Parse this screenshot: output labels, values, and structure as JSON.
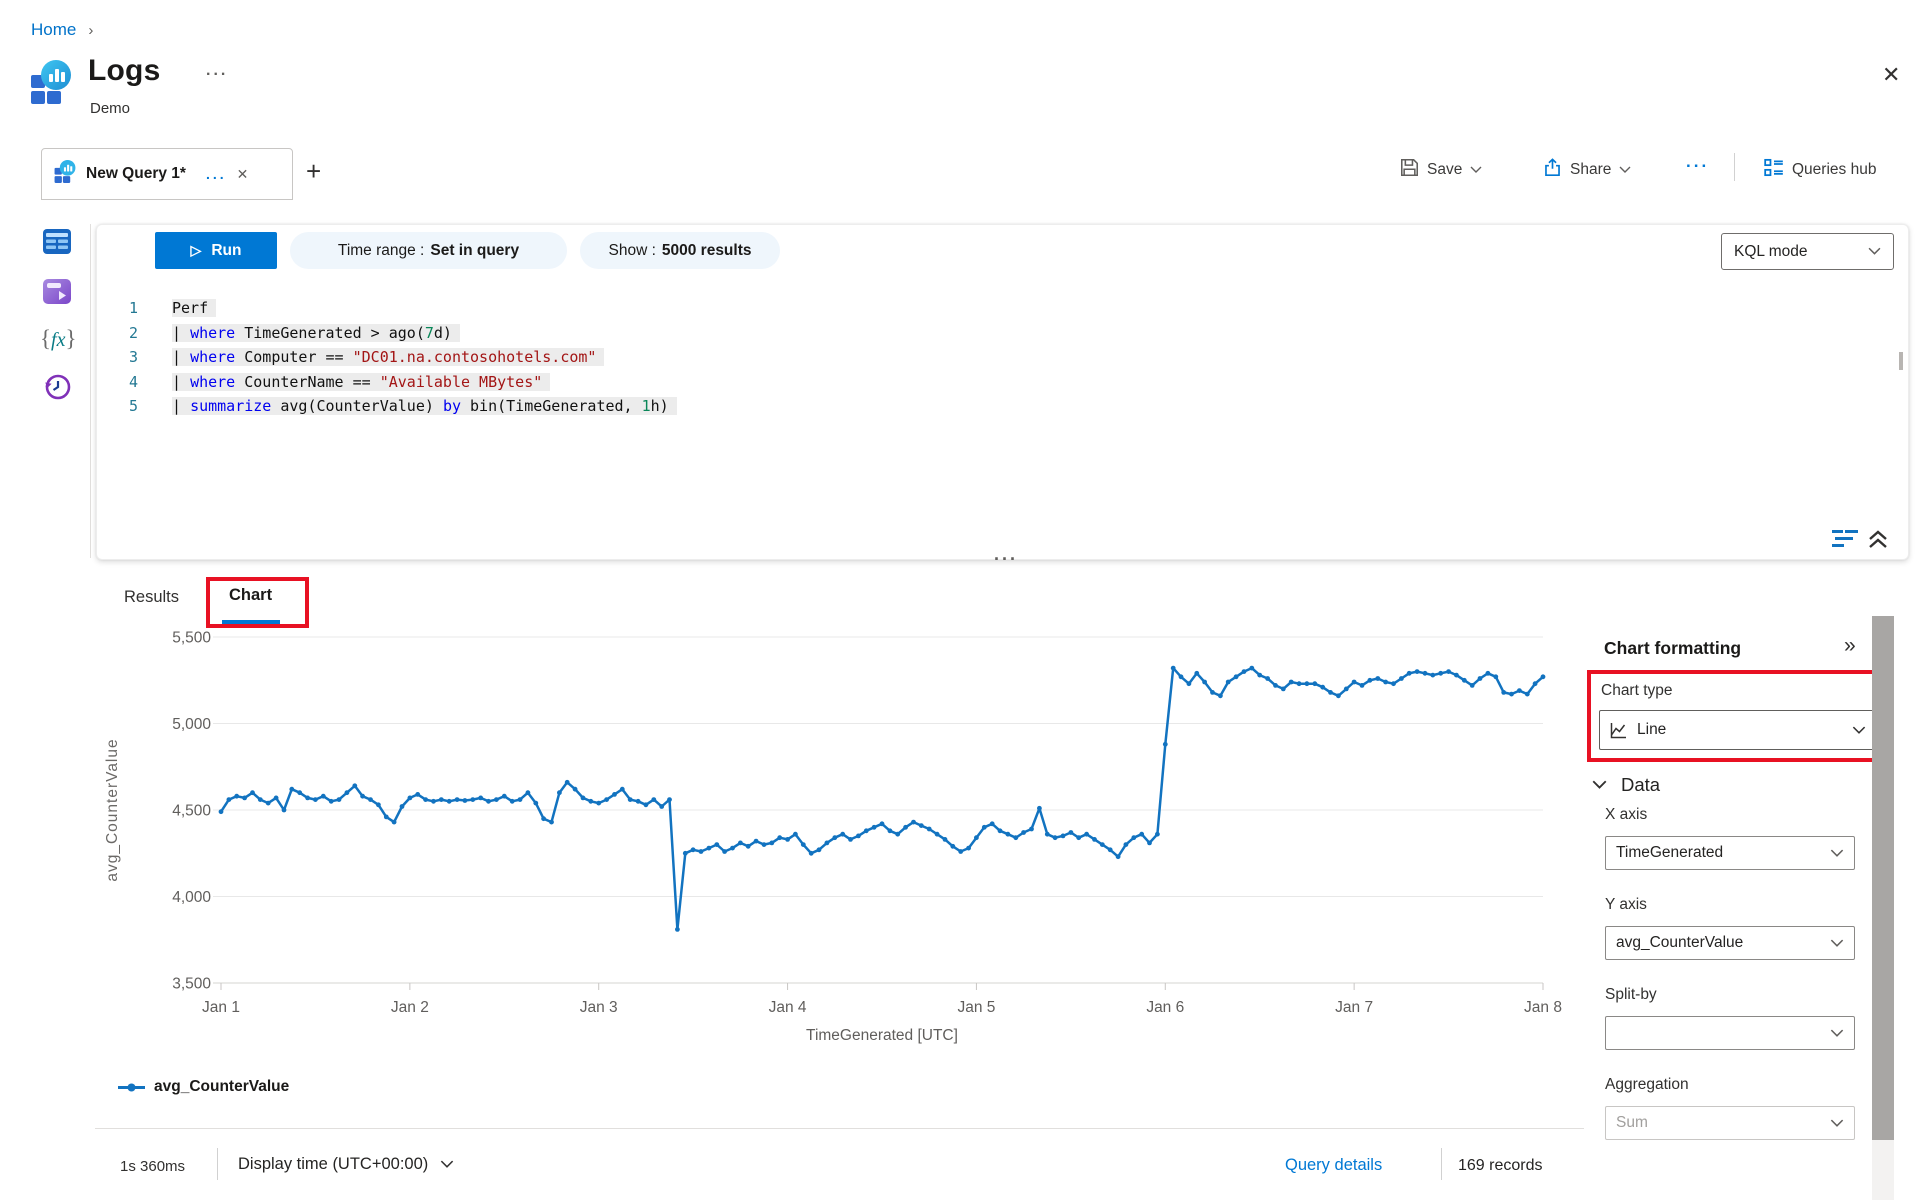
{
  "breadcrumb": {
    "home": "Home",
    "chevron": "›"
  },
  "header": {
    "title": "Logs",
    "subtitle": "Demo",
    "more": "...",
    "close": "✕"
  },
  "tabbar": {
    "tab_title": "New Query 1*",
    "more": "...",
    "close": "✕",
    "new_tab": "+"
  },
  "actions": {
    "save": "Save",
    "share": "Share",
    "more": "...",
    "queries_hub": "Queries hub"
  },
  "toolbar": {
    "run": "Run",
    "run_icon": "▷",
    "time_range_label": "Time range :",
    "time_range_value": "Set in query",
    "show_label": "Show :",
    "show_value": "5000 results",
    "kql_mode": "KQL mode"
  },
  "editor": {
    "lines": [
      {
        "num": "1",
        "tokens": [
          [
            "pl",
            "Perf"
          ]
        ]
      },
      {
        "num": "2",
        "tokens": [
          [
            "pl",
            "| "
          ],
          [
            "kw",
            "where"
          ],
          [
            "pl",
            " TimeGenerated > ago("
          ],
          [
            "num",
            "7"
          ],
          [
            "pl",
            "d)"
          ]
        ]
      },
      {
        "num": "3",
        "tokens": [
          [
            "pl",
            "| "
          ],
          [
            "kw",
            "where"
          ],
          [
            "pl",
            " Computer == "
          ],
          [
            "str",
            "\"DC01.na.contosohotels.com\""
          ]
        ]
      },
      {
        "num": "4",
        "tokens": [
          [
            "pl",
            "| "
          ],
          [
            "kw",
            "where"
          ],
          [
            "pl",
            " CounterName == "
          ],
          [
            "str",
            "\"Available MBytes\""
          ]
        ]
      },
      {
        "num": "5",
        "tokens": [
          [
            "pl",
            "| "
          ],
          [
            "kw",
            "summarize"
          ],
          [
            "pl",
            " avg(CounterValue) "
          ],
          [
            "kw",
            "by"
          ],
          [
            "pl",
            " bin(TimeGenerated, "
          ],
          [
            "num",
            "1"
          ],
          [
            "pl",
            "h)"
          ]
        ]
      }
    ],
    "drag_handle": "..."
  },
  "results": {
    "tabs": [
      {
        "label": "Results",
        "active": false
      },
      {
        "label": "Chart",
        "active": true
      }
    ]
  },
  "chart_data": {
    "type": "line",
    "xlabel": "TimeGenerated [UTC]",
    "ylabel": "avg_CounterValue",
    "x_tick_labels": [
      "Jan 1",
      "Jan 2",
      "Jan 3",
      "Jan 4",
      "Jan 5",
      "Jan 6",
      "Jan 7",
      "Jan 8"
    ],
    "y_ticks": [
      3500,
      4000,
      4500,
      5000,
      5500
    ],
    "y_tick_labels": [
      "3,500",
      "4,000",
      "4,500",
      "5,000",
      "5,500"
    ],
    "ylim": [
      3500,
      5500
    ],
    "x_hours_span": 168,
    "legend_position": "bottom-left",
    "grid": true,
    "series": [
      {
        "name": "avg_CounterValue",
        "color": "#1273c0",
        "values": [
          4490,
          4560,
          4580,
          4570,
          4600,
          4560,
          4540,
          4570,
          4500,
          4620,
          4600,
          4570,
          4560,
          4580,
          4550,
          4560,
          4600,
          4640,
          4580,
          4560,
          4530,
          4460,
          4430,
          4520,
          4570,
          4590,
          4560,
          4550,
          4560,
          4550,
          4560,
          4555,
          4560,
          4570,
          4550,
          4560,
          4580,
          4550,
          4560,
          4600,
          4540,
          4450,
          4430,
          4600,
          4660,
          4620,
          4570,
          4550,
          4540,
          4560,
          4590,
          4620,
          4560,
          4550,
          4530,
          4560,
          4520,
          4560,
          3810,
          4250,
          4270,
          4260,
          4280,
          4300,
          4260,
          4280,
          4310,
          4290,
          4320,
          4300,
          4310,
          4340,
          4330,
          4360,
          4300,
          4250,
          4270,
          4310,
          4340,
          4360,
          4330,
          4350,
          4380,
          4400,
          4420,
          4380,
          4360,
          4400,
          4430,
          4410,
          4390,
          4360,
          4330,
          4290,
          4260,
          4280,
          4340,
          4400,
          4420,
          4380,
          4360,
          4340,
          4370,
          4390,
          4510,
          4360,
          4340,
          4350,
          4370,
          4340,
          4360,
          4330,
          4300,
          4270,
          4230,
          4300,
          4340,
          4360,
          4310,
          4360,
          4880,
          5320,
          5270,
          5230,
          5290,
          5240,
          5180,
          5160,
          5240,
          5270,
          5300,
          5320,
          5280,
          5260,
          5220,
          5200,
          5240,
          5230,
          5230,
          5230,
          5210,
          5180,
          5160,
          5200,
          5240,
          5220,
          5250,
          5260,
          5240,
          5230,
          5260,
          5290,
          5300,
          5290,
          5280,
          5290,
          5300,
          5280,
          5250,
          5220,
          5260,
          5290,
          5270,
          5180,
          5170,
          5190,
          5170,
          5230,
          5270
        ]
      }
    ]
  },
  "statusbar": {
    "duration": "1s 360ms",
    "display_time": "Display time (UTC+00:00)",
    "query_details": "Query details",
    "records": "169 records"
  },
  "panel": {
    "title": "Chart formatting",
    "collapse": "»",
    "chart_type_label": "Chart type",
    "chart_type_value": "Line",
    "data_section": "Data",
    "fields": [
      {
        "name": "x-axis",
        "label": "X axis",
        "value": "TimeGenerated",
        "disabled": false
      },
      {
        "name": "y-axis",
        "label": "Y axis",
        "value": "avg_CounterValue",
        "disabled": false
      },
      {
        "name": "split-by",
        "label": "Split-by",
        "value": "",
        "disabled": false
      },
      {
        "name": "aggregation",
        "label": "Aggregation",
        "value": "Sum",
        "disabled": true
      }
    ]
  },
  "colors": {
    "accent": "#0078d4",
    "series_line": "#1273c0",
    "annotation_red": "#e81123",
    "keyword_blue": "#0000f0",
    "string_red": "#a31515",
    "number_green": "#098658",
    "line_number_teal": "#237893"
  }
}
